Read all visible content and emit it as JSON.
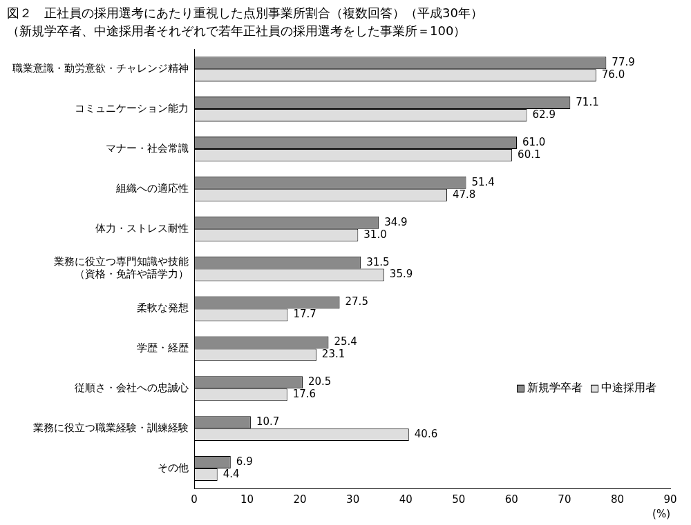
{
  "chart_data": {
    "type": "bar",
    "orientation": "horizontal",
    "title": "図２　正社員の採用選考にあたり重視した点別事業所割合（複数回答）（平成30年）",
    "subtitle": "（新規学卒者、中途採用者それぞれで若年正社員の採用選考をした事業所＝100）",
    "xlabel": "(%)",
    "categories": [
      "職業意識・勤労意欲・チャレンジ精神",
      "コミュニケーション能力",
      "マナー・社会常識",
      "組織への適応性",
      "体力・ストレス耐性",
      "業務に役立つ専門知識や技能\n（資格・免許や語学力）",
      "柔軟な発想",
      "学歴・経歴",
      "従順さ・会社への忠誠心",
      "業務に役立つ職業経験・訓練経験",
      "その他"
    ],
    "series": [
      {
        "name": "新規学卒者",
        "color": "#8a8a8a",
        "values": [
          77.9,
          71.1,
          61.0,
          51.4,
          34.9,
          31.5,
          27.5,
          25.4,
          20.5,
          10.7,
          6.9
        ],
        "value_labels": [
          "77.9",
          "71.1",
          "61.0",
          "51.4",
          "34.9",
          "31.5",
          "27.5",
          "25.4",
          "20.5",
          "10.7",
          "6.9"
        ]
      },
      {
        "name": "中途採用者",
        "color": "#dedede",
        "values": [
          76.0,
          62.9,
          60.1,
          47.8,
          31.0,
          35.9,
          17.7,
          23.1,
          17.6,
          40.6,
          4.4
        ],
        "value_labels": [
          "76.0",
          "62.9",
          "60.1",
          "47.8",
          "31.0",
          "35.9",
          "17.7",
          "23.1",
          "17.6",
          "40.6",
          "4.4"
        ]
      }
    ],
    "xlim": [
      0,
      90
    ],
    "xticks": [
      0,
      10,
      20,
      30,
      40,
      50,
      60,
      70,
      80,
      90
    ],
    "grid": false,
    "legend": "lower right",
    "data_labels": true
  }
}
